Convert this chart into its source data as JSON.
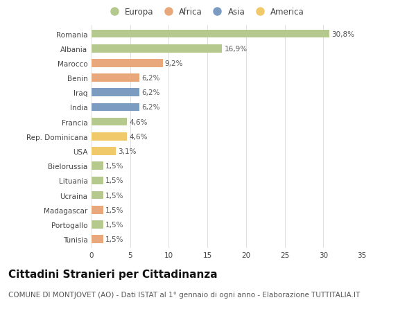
{
  "categories": [
    "Romania",
    "Albania",
    "Marocco",
    "Benin",
    "Iraq",
    "India",
    "Francia",
    "Rep. Dominicana",
    "USA",
    "Bielorussia",
    "Lituania",
    "Ucraina",
    "Madagascar",
    "Portogallo",
    "Tunisia"
  ],
  "values": [
    30.8,
    16.9,
    9.2,
    6.2,
    6.2,
    6.2,
    4.6,
    4.6,
    3.1,
    1.5,
    1.5,
    1.5,
    1.5,
    1.5,
    1.5
  ],
  "labels": [
    "30,8%",
    "16,9%",
    "9,2%",
    "6,2%",
    "6,2%",
    "6,2%",
    "4,6%",
    "4,6%",
    "3,1%",
    "1,5%",
    "1,5%",
    "1,5%",
    "1,5%",
    "1,5%",
    "1,5%"
  ],
  "colors": [
    "#b5c98e",
    "#b5c98e",
    "#e8a87c",
    "#e8a87c",
    "#7b9cc0",
    "#7b9cc0",
    "#b5c98e",
    "#f0c96a",
    "#f0c96a",
    "#b5c98e",
    "#b5c98e",
    "#b5c98e",
    "#e8a87c",
    "#b5c98e",
    "#e8a87c"
  ],
  "legend_labels": [
    "Europa",
    "Africa",
    "Asia",
    "America"
  ],
  "legend_colors": [
    "#b5c98e",
    "#e8a87c",
    "#7b9cc0",
    "#f0c96a"
  ],
  "xlim": [
    0,
    35
  ],
  "xticks": [
    0,
    5,
    10,
    15,
    20,
    25,
    30,
    35
  ],
  "title": "Cittadini Stranieri per Cittadinanza",
  "subtitle": "COMUNE DI MONTJOVET (AO) - Dati ISTAT al 1° gennaio di ogni anno - Elaborazione TUTTITALIA.IT",
  "background_color": "#ffffff",
  "grid_color": "#e0e0e0",
  "bar_height": 0.55,
  "title_fontsize": 11,
  "subtitle_fontsize": 7.5,
  "label_fontsize": 7.5,
  "tick_fontsize": 7.5,
  "legend_fontsize": 8.5
}
